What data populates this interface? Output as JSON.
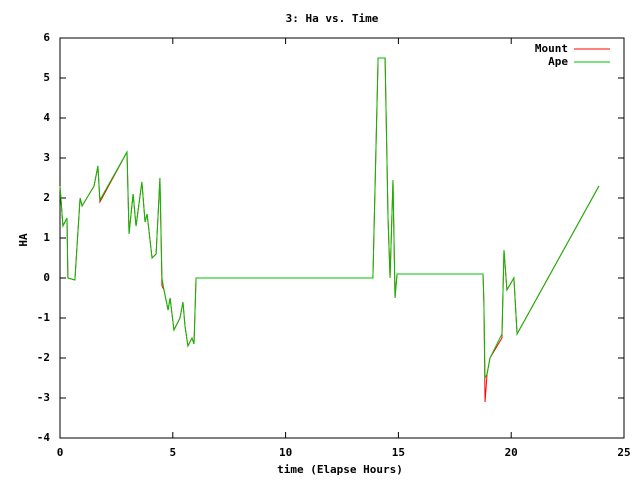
{
  "chart_data": {
    "type": "line",
    "title": "3: Ha vs. Time",
    "x_label": "time (Elapse Hours)",
    "y_label": "HA",
    "x": [
      0,
      0.13,
      0.31,
      0.35,
      0.66,
      0.89,
      0.98,
      1.51,
      1.68,
      1.77,
      2.97,
      3.06,
      3.24,
      3.37,
      3.63,
      3.77,
      3.86,
      4.08,
      4.26,
      4.43,
      4.52,
      4.61,
      4.79,
      4.88,
      5.05,
      5.32,
      5.45,
      5.54,
      5.67,
      5.85,
      5.94,
      6.03,
      13.87,
      14.1,
      14.41,
      14.54,
      14.63,
      14.76,
      14.85,
      14.94,
      18.75,
      18.79,
      18.84,
      18.93,
      19.06,
      19.59,
      19.68,
      19.81,
      20.12,
      20.26,
      23.89
    ],
    "series": [
      {
        "name": "Mount",
        "color": "#ff0000",
        "values": [
          2.3,
          1.3,
          1.5,
          0,
          -0.05,
          2.0,
          1.8,
          2.3,
          2.8,
          1.9,
          3.15,
          1.1,
          2.1,
          1.3,
          2.4,
          1.4,
          1.6,
          0.5,
          0.6,
          2.5,
          -0.2,
          -0.3,
          -0.8,
          -0.5,
          -1.3,
          -1.0,
          -0.6,
          -1.2,
          -1.7,
          -1.5,
          -1.65,
          0,
          0,
          5.5,
          5.5,
          1.5,
          0,
          2.45,
          -0.5,
          0.1,
          0.1,
          -0.6,
          -3.1,
          -2.4,
          -2.0,
          -1.5,
          0.7,
          -0.3,
          0,
          -1.4,
          2.3
        ]
      },
      {
        "name": "Ape",
        "color": "#00c000",
        "values": [
          2.3,
          1.3,
          1.5,
          0,
          -0.05,
          2.0,
          1.8,
          2.3,
          2.8,
          1.95,
          3.15,
          1.1,
          2.1,
          1.3,
          2.4,
          1.4,
          1.6,
          0.5,
          0.6,
          2.5,
          0,
          -0.3,
          -0.8,
          -0.5,
          -1.3,
          -1.0,
          -0.6,
          -1.2,
          -1.7,
          -1.5,
          -1.65,
          0,
          0,
          5.5,
          5.5,
          1.5,
          0,
          2.45,
          -0.5,
          0.1,
          0.1,
          -0.6,
          -2.5,
          -2.4,
          -2.0,
          -1.4,
          0.7,
          -0.3,
          0,
          -1.4,
          2.3
        ]
      }
    ],
    "xlim": [
      0,
      25
    ],
    "xticks": [
      0,
      5,
      10,
      15,
      20,
      25
    ],
    "ylim": [
      -4,
      6
    ],
    "yticks": [
      -4,
      -3,
      -2,
      -1,
      0,
      1,
      2,
      3,
      4,
      5,
      6
    ],
    "grid": false,
    "legend": "top-right"
  }
}
